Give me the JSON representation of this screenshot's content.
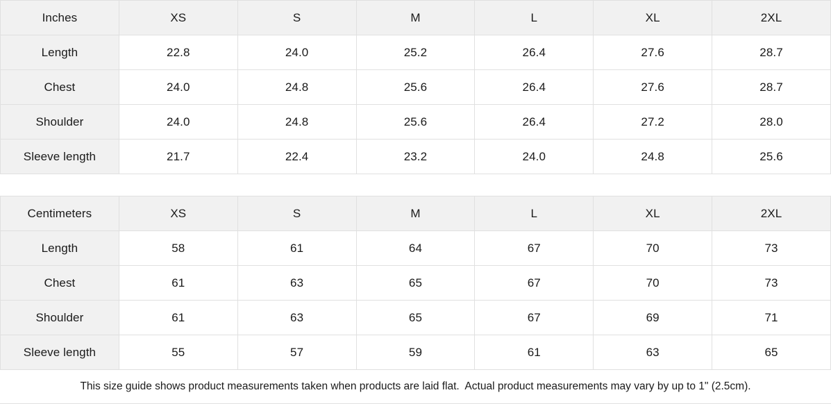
{
  "tables": [
    {
      "unit_label": "Inches",
      "sizes": [
        "XS",
        "S",
        "M",
        "L",
        "XL",
        "2XL"
      ],
      "rows": [
        {
          "label": "Length",
          "values": [
            "22.8",
            "24.0",
            "25.2",
            "26.4",
            "27.6",
            "28.7"
          ]
        },
        {
          "label": "Chest",
          "values": [
            "24.0",
            "24.8",
            "25.6",
            "26.4",
            "27.6",
            "28.7"
          ]
        },
        {
          "label": "Shoulder",
          "values": [
            "24.0",
            "24.8",
            "25.6",
            "26.4",
            "27.2",
            "28.0"
          ]
        },
        {
          "label": "Sleeve length",
          "values": [
            "21.7",
            "22.4",
            "23.2",
            "24.0",
            "24.8",
            "25.6"
          ]
        }
      ]
    },
    {
      "unit_label": "Centimeters",
      "sizes": [
        "XS",
        "S",
        "M",
        "L",
        "XL",
        "2XL"
      ],
      "rows": [
        {
          "label": "Length",
          "values": [
            "58",
            "61",
            "64",
            "67",
            "70",
            "73"
          ]
        },
        {
          "label": "Chest",
          "values": [
            "61",
            "63",
            "65",
            "67",
            "70",
            "73"
          ]
        },
        {
          "label": "Shoulder",
          "values": [
            "61",
            "63",
            "65",
            "67",
            "69",
            "71"
          ]
        },
        {
          "label": "Sleeve length",
          "values": [
            "55",
            "57",
            "59",
            "61",
            "63",
            "65"
          ]
        }
      ]
    }
  ],
  "footer": {
    "note": "This size guide shows product measurements taken when products are laid flat.  Actual product measurements may vary by up to 1\" (2.5cm)."
  },
  "colors": {
    "header_bg": "#f1f1f1",
    "border": "#e0e0e0",
    "text": "#1a1a1a",
    "background": "#ffffff"
  }
}
